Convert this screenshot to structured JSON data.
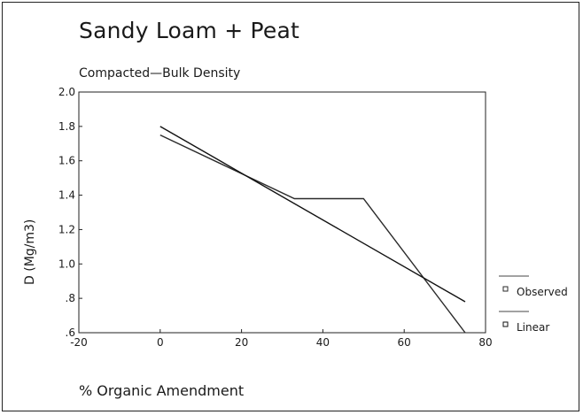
{
  "chart_data": {
    "type": "line",
    "title": "Sandy Loam + Peat",
    "subtitle": "Compacted—Bulk Density",
    "xlabel": "% Organic Amendment",
    "ylabel": "D (Mg/m3)",
    "xlim": [
      -20,
      80
    ],
    "ylim": [
      0.6,
      2.0
    ],
    "x_ticks": [
      -20,
      0,
      20,
      40,
      60,
      80
    ],
    "x_tick_labels": [
      "-20",
      "0",
      "20",
      "40",
      "60",
      "80"
    ],
    "y_ticks": [
      0.6,
      0.8,
      1.0,
      1.2,
      1.4,
      1.6,
      1.8,
      2.0
    ],
    "y_tick_labels": [
      ".6",
      ".8",
      "1.0",
      "1.2",
      "1.4",
      "1.6",
      "1.8",
      "2.0"
    ],
    "grid": false,
    "legend_position": "right",
    "series": [
      {
        "name": "Observed",
        "x": [
          0,
          33,
          50,
          75
        ],
        "y": [
          1.75,
          1.38,
          1.38,
          0.6
        ],
        "color": "#2a2a2a",
        "marker": "square"
      },
      {
        "name": "Linear",
        "x": [
          0,
          75
        ],
        "y": [
          1.8,
          0.78
        ],
        "color": "#111111",
        "marker": "square"
      }
    ]
  }
}
